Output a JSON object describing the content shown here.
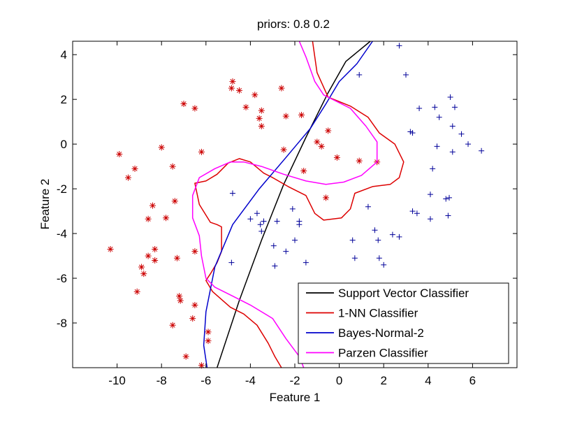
{
  "chart_data": {
    "type": "scatter",
    "title": "priors:  0.8  0.2",
    "xlabel": "Feature 1",
    "ylabel": "Feature 2",
    "xlim": [
      -12,
      8
    ],
    "ylim": [
      -10,
      4.6
    ],
    "xticks": [
      -10,
      -8,
      -6,
      -4,
      -2,
      0,
      2,
      4,
      6
    ],
    "yticks": [
      4,
      2,
      0,
      -2,
      -4,
      -6,
      -8
    ],
    "grid": false,
    "legend_position": "bottom-right",
    "series": [
      {
        "kind": "points",
        "marker": "asterisk",
        "color": "#cc0000",
        "points": [
          [
            -4.8,
            2.8
          ],
          [
            -4.85,
            2.5
          ],
          [
            -4.5,
            2.4
          ],
          [
            -3.8,
            2.2
          ],
          [
            -2.6,
            2.5
          ],
          [
            -7,
            1.8
          ],
          [
            -6.5,
            1.6
          ],
          [
            -4.2,
            1.65
          ],
          [
            -3.5,
            1.5
          ],
          [
            -3.6,
            1.15
          ],
          [
            -3.5,
            0.8
          ],
          [
            -2.4,
            1.25
          ],
          [
            -1.7,
            1.3
          ],
          [
            -0.5,
            0.6
          ],
          [
            -1.0,
            0.1
          ],
          [
            -0.8,
            -0.1
          ],
          [
            -0.1,
            -0.6
          ],
          [
            0.9,
            -0.75
          ],
          [
            1.7,
            -0.8
          ],
          [
            -9.9,
            -0.45
          ],
          [
            -8,
            -0.15
          ],
          [
            -6.2,
            -0.35
          ],
          [
            -2.5,
            -0.25
          ],
          [
            -9.2,
            -1.1
          ],
          [
            -7.5,
            -1.0
          ],
          [
            -9.5,
            -1.5
          ],
          [
            -1.6,
            -1.2
          ],
          [
            -7.4,
            -2.55
          ],
          [
            -8.4,
            -2.75
          ],
          [
            -0.6,
            -2.4
          ],
          [
            -8.6,
            -3.35
          ],
          [
            -7.8,
            -3.3
          ],
          [
            -6.5,
            -4.8
          ],
          [
            -10.3,
            -4.7
          ],
          [
            -8.3,
            -4.7
          ],
          [
            -8.6,
            -5.0
          ],
          [
            -7.3,
            -5.1
          ],
          [
            -8.3,
            -5.2
          ],
          [
            -8.9,
            -5.5
          ],
          [
            -8.8,
            -5.8
          ],
          [
            -9.1,
            -6.6
          ],
          [
            -7.2,
            -6.8
          ],
          [
            -7.15,
            -7.0
          ],
          [
            -6.5,
            -7.2
          ],
          [
            -7.5,
            -8.1
          ],
          [
            -6.6,
            -7.8
          ],
          [
            -5.9,
            -8.4
          ],
          [
            -5.9,
            -8.8
          ],
          [
            -6.9,
            -9.5
          ],
          [
            -6.2,
            -9.9
          ]
        ]
      },
      {
        "kind": "points",
        "marker": "plus",
        "color": "#000099",
        "points": [
          [
            2.7,
            4.4
          ],
          [
            3.0,
            3.1
          ],
          [
            0.9,
            3.1
          ],
          [
            5.0,
            2.1
          ],
          [
            3.6,
            1.6
          ],
          [
            4.3,
            1.65
          ],
          [
            5.2,
            1.65
          ],
          [
            4.5,
            1.2
          ],
          [
            5.1,
            0.8
          ],
          [
            3.2,
            0.55
          ],
          [
            3.3,
            0.5
          ],
          [
            5.5,
            0.45
          ],
          [
            5.8,
            0.0
          ],
          [
            4.4,
            -0.1
          ],
          [
            5.1,
            -0.35
          ],
          [
            6.4,
            -0.3
          ],
          [
            4.2,
            -1.1
          ],
          [
            -4.8,
            -2.2
          ],
          [
            4.1,
            -2.25
          ],
          [
            4.95,
            -2.4
          ],
          [
            4.8,
            -2.45
          ],
          [
            1.3,
            -2.8
          ],
          [
            -2.1,
            -2.9
          ],
          [
            3.3,
            -3.0
          ],
          [
            3.5,
            -3.1
          ],
          [
            4.1,
            -3.35
          ],
          [
            4.9,
            -3.2
          ],
          [
            -3.7,
            -3.1
          ],
          [
            -4.0,
            -3.35
          ],
          [
            -3.4,
            -3.45
          ],
          [
            -1.8,
            -3.45
          ],
          [
            -3.55,
            -3.6
          ],
          [
            -3.5,
            -3.9
          ],
          [
            -2.8,
            -3.45
          ],
          [
            -1.8,
            -3.6
          ],
          [
            1.6,
            -3.85
          ],
          [
            2.4,
            -4.05
          ],
          [
            2.7,
            -4.15
          ],
          [
            -2.0,
            -4.3
          ],
          [
            0.6,
            -4.3
          ],
          [
            1.75,
            -4.3
          ],
          [
            -2.95,
            -4.55
          ],
          [
            -2.4,
            -4.8
          ],
          [
            0.7,
            -5.1
          ],
          [
            1.8,
            -5.1
          ],
          [
            -4.85,
            -5.3
          ],
          [
            -1.5,
            -5.3
          ],
          [
            2.0,
            -5.4
          ],
          [
            -2.9,
            -5.45
          ]
        ]
      },
      {
        "kind": "line",
        "name": "Support Vector Classifier",
        "color": "#000000",
        "points": [
          [
            -5.5,
            -10.0
          ],
          [
            -4.5,
            -7.0
          ],
          [
            -3.5,
            -4.3
          ],
          [
            -2.5,
            -1.8
          ],
          [
            -1.5,
            0.3
          ],
          [
            -0.5,
            2.3
          ],
          [
            0.3,
            3.7
          ],
          [
            1.4,
            4.6
          ]
        ]
      },
      {
        "kind": "line",
        "name": "1-NN Classifier",
        "color": "#dd0000",
        "points": [
          [
            -1.2,
            4.6
          ],
          [
            -1.0,
            3.2
          ],
          [
            -0.5,
            2.1
          ],
          [
            0.5,
            1.7
          ],
          [
            1.3,
            1.2
          ],
          [
            1.8,
            0.5
          ],
          [
            2.5,
            0.0
          ],
          [
            2.9,
            -0.8
          ],
          [
            2.7,
            -1.5
          ],
          [
            2.3,
            -1.8
          ],
          [
            1.5,
            -1.9
          ],
          [
            0.7,
            -2.2
          ],
          [
            0.5,
            -2.9
          ],
          [
            0.1,
            -3.3
          ],
          [
            -0.7,
            -3.4
          ],
          [
            -1.1,
            -3.1
          ],
          [
            -1.5,
            -2.3
          ],
          [
            -2.3,
            -1.9
          ],
          [
            -3.0,
            -1.5
          ],
          [
            -3.4,
            -1.3
          ],
          [
            -4.0,
            -0.8
          ],
          [
            -4.5,
            -0.65
          ],
          [
            -5.0,
            -0.85
          ],
          [
            -5.5,
            -1.35
          ],
          [
            -6.0,
            -1.65
          ],
          [
            -6.5,
            -1.75
          ],
          [
            -6.3,
            -2.7
          ],
          [
            -5.8,
            -3.5
          ],
          [
            -5.5,
            -3.6
          ],
          [
            -5.3,
            -3.7
          ],
          [
            -5.3,
            -4.8
          ],
          [
            -5.5,
            -5.3
          ],
          [
            -5.8,
            -5.8
          ],
          [
            -6.0,
            -6.1
          ],
          [
            -5.7,
            -6.6
          ],
          [
            -4.9,
            -7.3
          ],
          [
            -4.3,
            -7.6
          ],
          [
            -3.7,
            -8.1
          ],
          [
            -3.2,
            -8.9
          ],
          [
            -2.9,
            -9.5
          ],
          [
            -2.6,
            -10.0
          ]
        ]
      },
      {
        "kind": "line",
        "name": "Bayes-Normal-2",
        "color": "#0000cc",
        "points": [
          [
            -5.95,
            -10.0
          ],
          [
            -6.1,
            -9.0
          ],
          [
            -6.0,
            -7.5
          ],
          [
            -5.6,
            -5.5
          ],
          [
            -4.8,
            -3.6
          ],
          [
            -3.6,
            -2.0
          ],
          [
            -2.4,
            -0.6
          ],
          [
            -1.3,
            0.7
          ],
          [
            -0.6,
            1.8
          ],
          [
            0.0,
            2.8
          ],
          [
            0.8,
            3.6
          ],
          [
            1.5,
            4.6
          ]
        ]
      },
      {
        "kind": "line",
        "name": "Parzen Classifier",
        "color": "#ff00ff",
        "points": [
          [
            -1.8,
            4.6
          ],
          [
            -1.5,
            3.9
          ],
          [
            -1.1,
            2.8
          ],
          [
            -0.7,
            2.2
          ],
          [
            0.5,
            1.6
          ],
          [
            1.2,
            0.8
          ],
          [
            1.7,
            0.1
          ],
          [
            1.7,
            -0.8
          ],
          [
            1.0,
            -1.4
          ],
          [
            0.2,
            -1.7
          ],
          [
            -0.6,
            -1.8
          ],
          [
            -1.5,
            -1.65
          ],
          [
            -2.5,
            -1.35
          ],
          [
            -3.5,
            -1.0
          ],
          [
            -4.3,
            -0.8
          ],
          [
            -4.9,
            -0.8
          ],
          [
            -5.6,
            -1.1
          ],
          [
            -6.3,
            -1.5
          ],
          [
            -6.6,
            -2.3
          ],
          [
            -6.6,
            -3.3
          ],
          [
            -6.3,
            -4.1
          ],
          [
            -6.2,
            -5.0
          ],
          [
            -6.0,
            -6.0
          ],
          [
            -5.6,
            -6.4
          ],
          [
            -4.8,
            -6.8
          ],
          [
            -4.0,
            -7.2
          ],
          [
            -3.0,
            -7.8
          ],
          [
            -2.4,
            -8.7
          ],
          [
            -1.8,
            -9.5
          ],
          [
            -1.6,
            -10.0
          ]
        ]
      }
    ]
  }
}
